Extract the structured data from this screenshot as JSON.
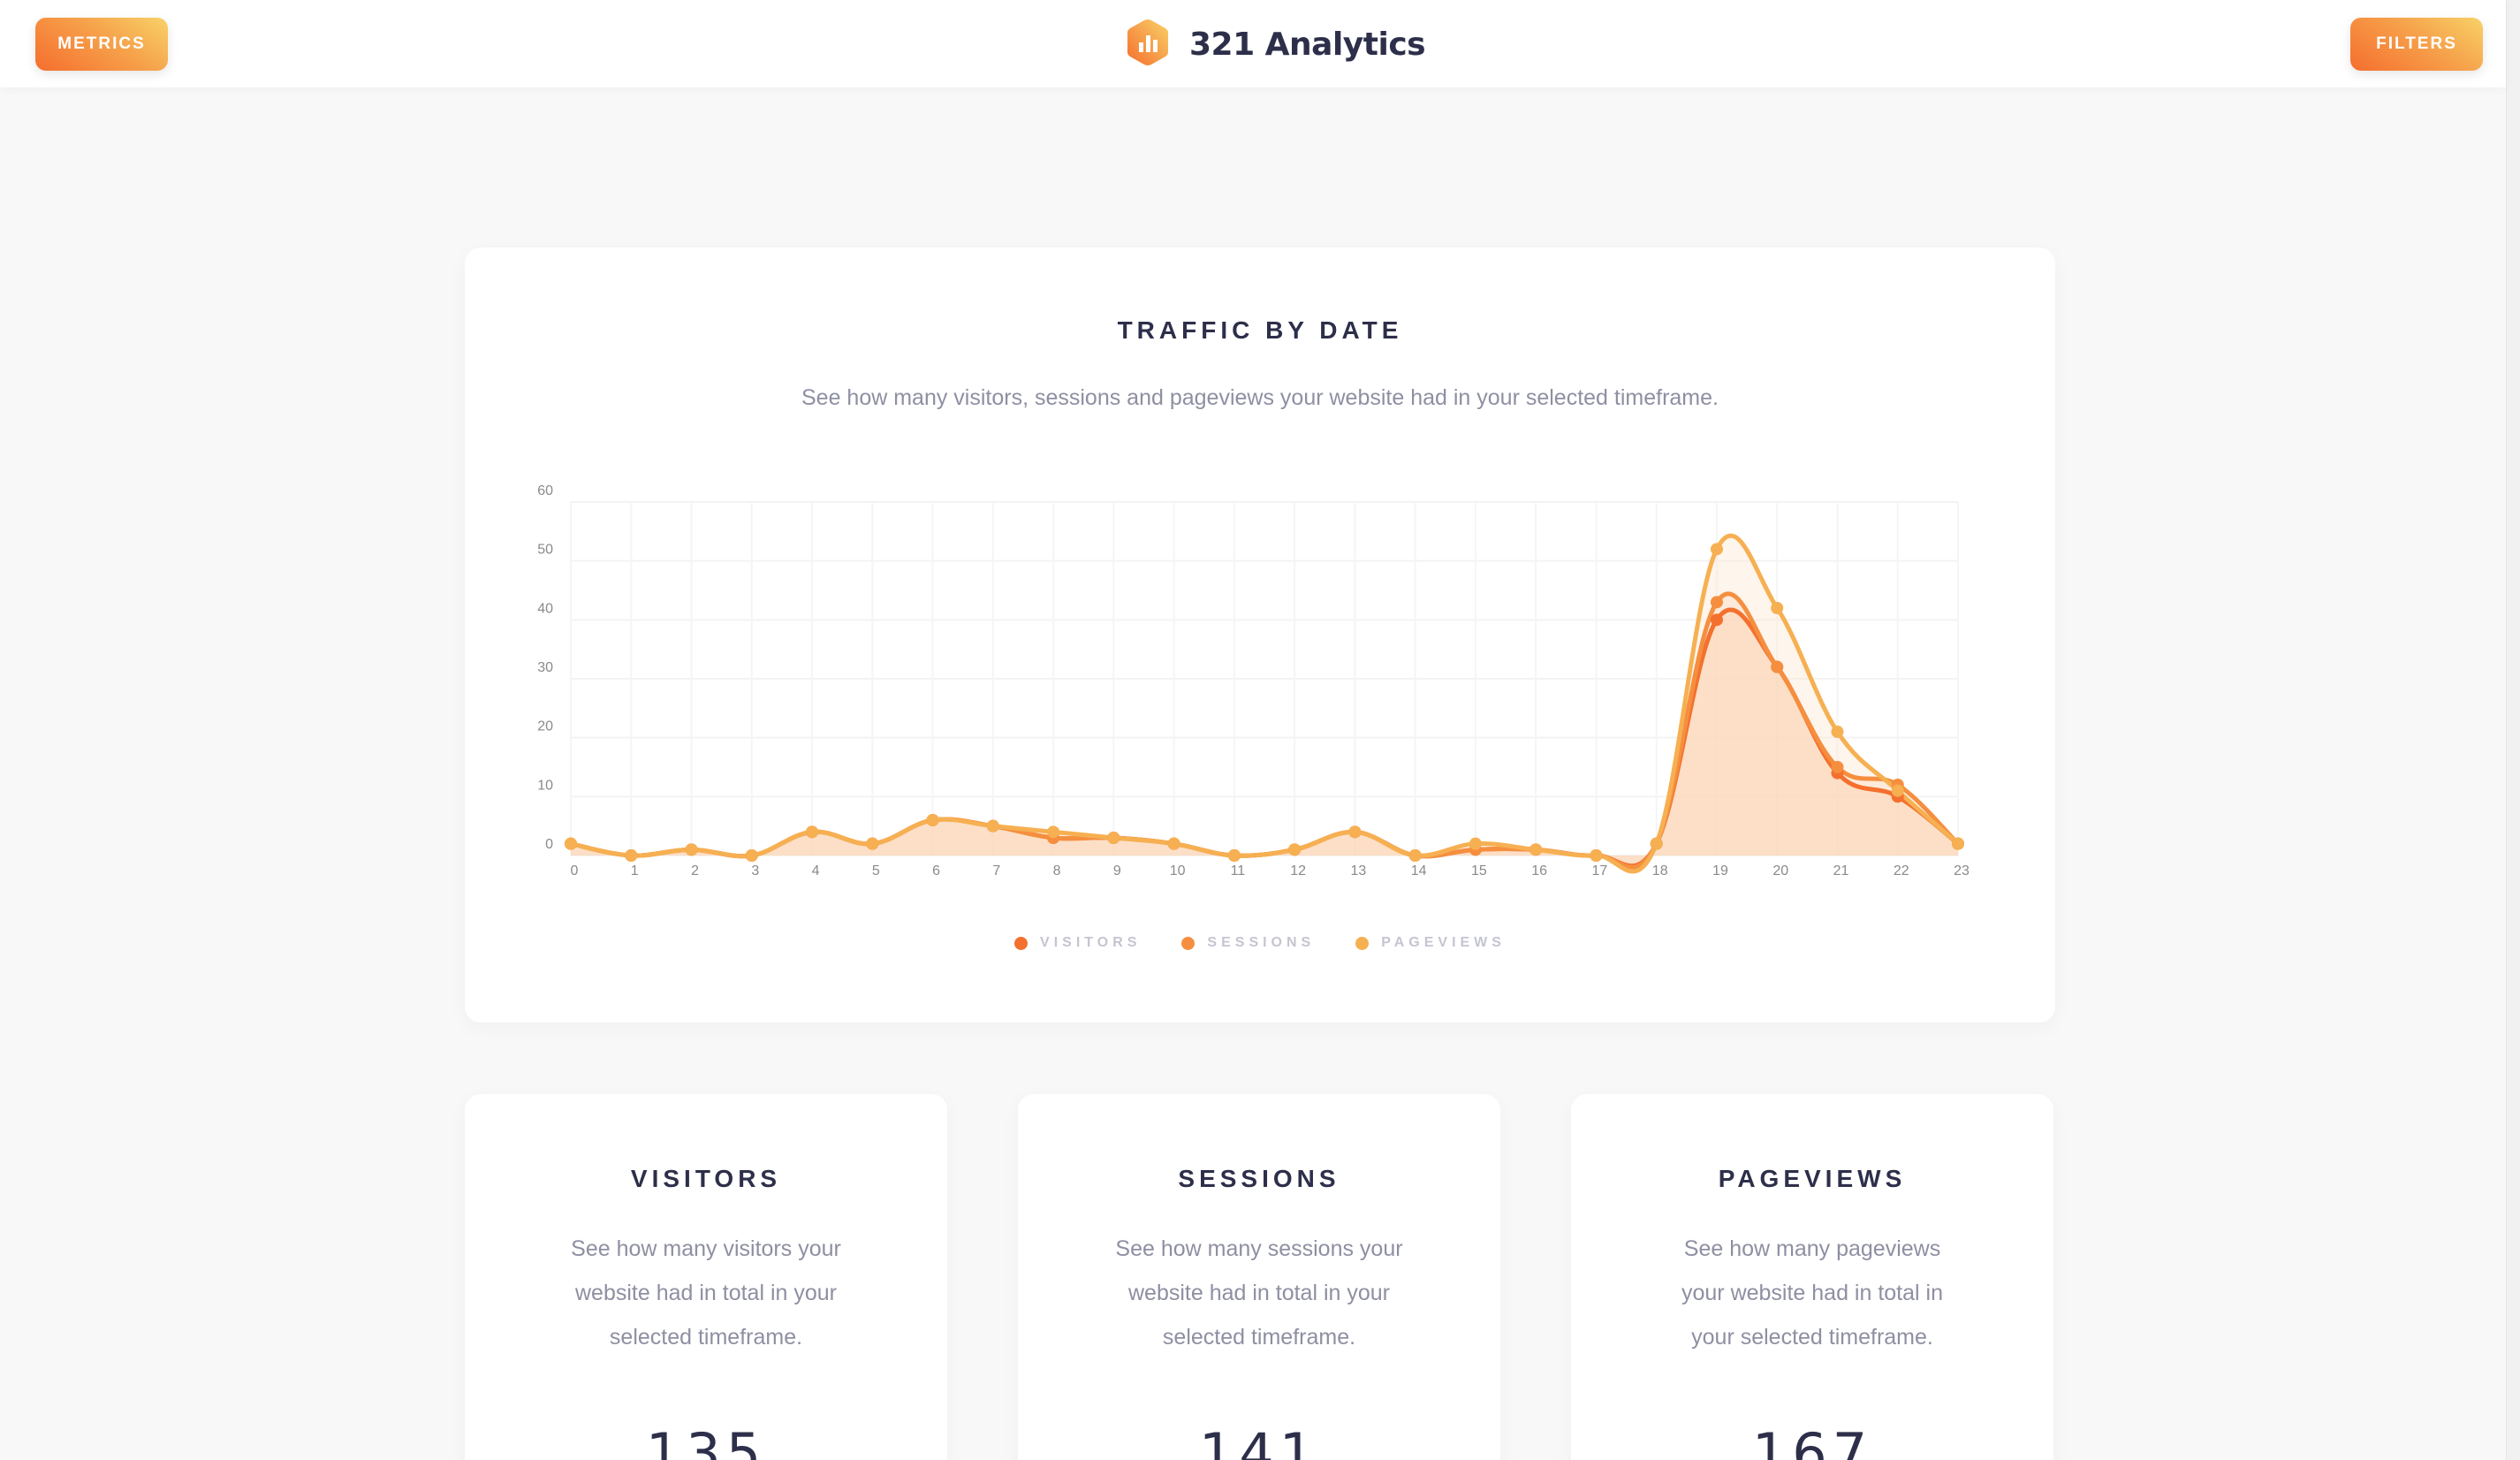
{
  "header": {
    "left_button": "METRICS",
    "right_button": "FILTERS",
    "brand_title": "321 Analytics",
    "brand_icon": "bar-chart-hexagon-icon"
  },
  "colors": {
    "visitors": "#f4702e",
    "sessions": "#f58f3f",
    "pageviews": "#f6b052",
    "area_fill": "#fde2cc",
    "title_text": "#2d2f4a",
    "subtle_text": "#8e8fa2",
    "gradient_start": "#f56e2e",
    "gradient_end": "#f8d268"
  },
  "traffic_card": {
    "title": "TRAFFIC BY DATE",
    "subtitle": "See how many visitors, sessions and pageviews your website had in your selected timeframe."
  },
  "chart_data": {
    "type": "area",
    "title": "TRAFFIC BY DATE",
    "subtitle": "See how many visitors, sessions and pageviews your website had in your selected timeframe.",
    "xlabel": "",
    "ylabel": "",
    "x": [
      0,
      1,
      2,
      3,
      4,
      5,
      6,
      7,
      8,
      9,
      10,
      11,
      12,
      13,
      14,
      15,
      16,
      17,
      18,
      19,
      20,
      21,
      22,
      23
    ],
    "ylim": [
      0,
      60
    ],
    "yticks": [
      0,
      10,
      20,
      30,
      40,
      50,
      60
    ],
    "grid": true,
    "smooth": true,
    "legend_position": "bottom-center",
    "series": [
      {
        "name": "VISITORS",
        "color": "#f4702e",
        "values": [
          2,
          0,
          1,
          0,
          4,
          2,
          6,
          5,
          3,
          3,
          2,
          0,
          1,
          4,
          0,
          1,
          1,
          0,
          2,
          40,
          32,
          14,
          10,
          2
        ]
      },
      {
        "name": "SESSIONS",
        "color": "#f58f3f",
        "values": [
          2,
          0,
          1,
          0,
          4,
          2,
          6,
          5,
          3,
          3,
          2,
          0,
          1,
          4,
          0,
          1,
          1,
          0,
          2,
          43,
          32,
          15,
          12,
          2
        ]
      },
      {
        "name": "PAGEVIEWS",
        "color": "#f6b052",
        "values": [
          2,
          0,
          1,
          0,
          4,
          2,
          6,
          5,
          4,
          3,
          2,
          0,
          1,
          4,
          0,
          2,
          1,
          0,
          2,
          52,
          42,
          21,
          11,
          2
        ]
      }
    ]
  },
  "legend": [
    {
      "label": "VISITORS",
      "color": "#f4702e"
    },
    {
      "label": "SESSIONS",
      "color": "#f58f3f"
    },
    {
      "label": "PAGEVIEWS",
      "color": "#f6b052"
    }
  ],
  "stats": [
    {
      "title": "VISITORS",
      "description": "See how many visitors your website had in total in your selected timeframe.",
      "value": "135"
    },
    {
      "title": "SESSIONS",
      "description": "See how many sessions your website had in total in your selected timeframe.",
      "value": "141"
    },
    {
      "title": "PAGEVIEWS",
      "description": "See how many pageviews your website had in total in your selected timeframe.",
      "value": "167"
    }
  ]
}
